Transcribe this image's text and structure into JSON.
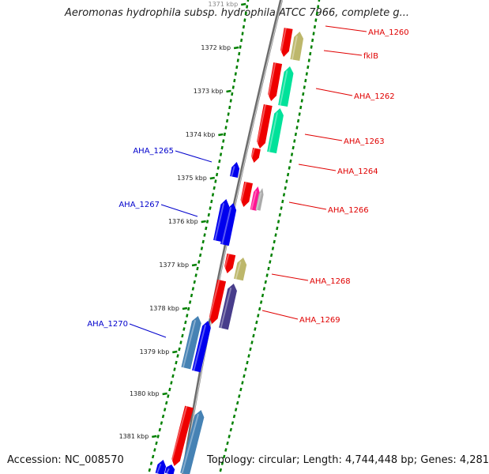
{
  "title": "Aeromonas hydrophila subsp. hydrophila ATCC 7966, complete g...",
  "footer": {
    "accession": "Accession: NC_008570",
    "topology": "Topology: circular; Length: 4,744,448 bp; Genes: 4,281"
  },
  "ticks": [
    {
      "label": "1371 kbp",
      "faded": true
    },
    {
      "label": "1372 kbp"
    },
    {
      "label": "1373 kbp"
    },
    {
      "label": "1374 kbp"
    },
    {
      "label": "1375 kbp"
    },
    {
      "label": "1376 kbp"
    },
    {
      "label": "1377 kbp"
    },
    {
      "label": "1378 kbp"
    },
    {
      "label": "1379 kbp"
    },
    {
      "label": "1380 kbp"
    },
    {
      "label": "1381 kbp"
    }
  ],
  "genes_right": [
    {
      "label": "AHA_1260",
      "color": "#e00000"
    },
    {
      "label": "fklB",
      "color": "#e00000"
    },
    {
      "label": "AHA_1262",
      "color": "#e00000"
    },
    {
      "label": "AHA_1263",
      "color": "#e00000"
    },
    {
      "label": "AHA_1264",
      "color": "#e00000"
    },
    {
      "label": "AHA_1266",
      "color": "#e00000"
    },
    {
      "label": "AHA_1268",
      "color": "#e00000"
    },
    {
      "label": "AHA_1269",
      "color": "#e00000"
    }
  ],
  "genes_left": [
    {
      "label": "AHA_1265",
      "color": "#0000cc"
    },
    {
      "label": "AHA_1267",
      "color": "#0000cc"
    },
    {
      "label": "AHA_1270",
      "color": "#0000cc"
    }
  ],
  "colors": {
    "forward": "#ee0000",
    "reverse": "#0000ee",
    "khaki": "#bdb76b",
    "green": "#00e29a",
    "pink": "#ff1493",
    "slate": "#483d8b",
    "steel": "#4682b4",
    "backbone": "#888888",
    "dots": "#008000"
  }
}
